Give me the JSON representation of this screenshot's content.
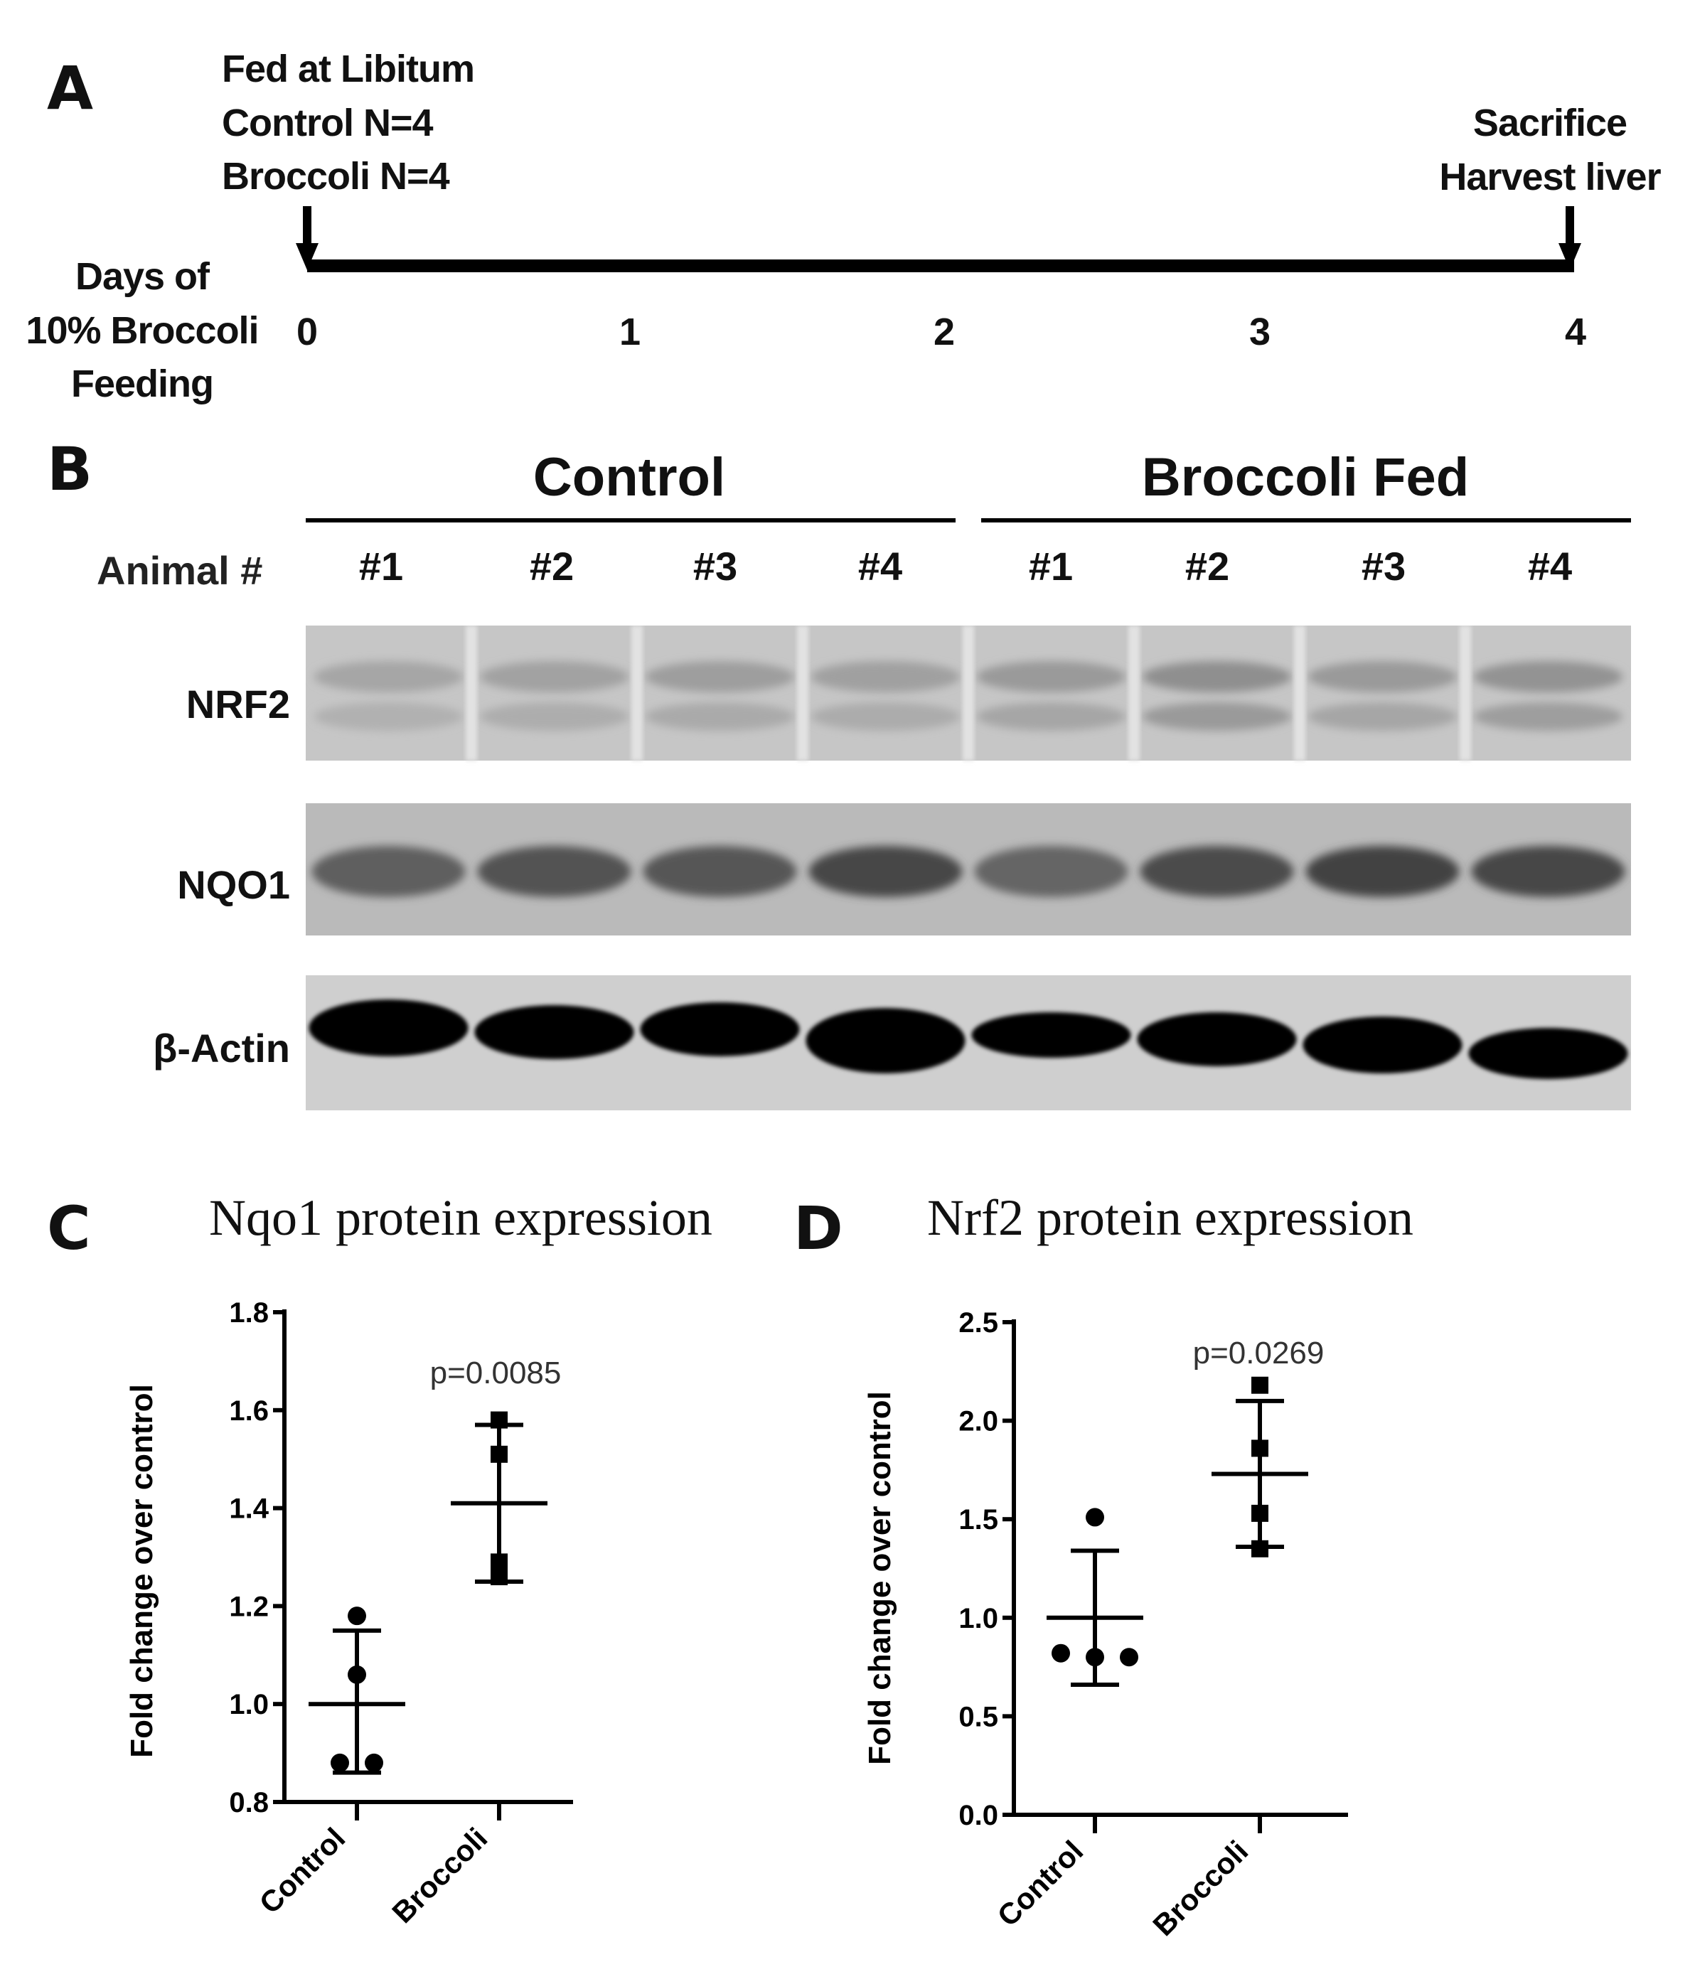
{
  "panelA": {
    "letter": "A",
    "start_lines": [
      "Fed at Libitum",
      "Control N=4",
      "Broccoli N=4"
    ],
    "end_lines": [
      "Sacrifice",
      "Harvest liver"
    ],
    "axis_label_lines": [
      "Days of",
      "10% Broccoli",
      "Feeding"
    ],
    "days": [
      "0",
      "1",
      "2",
      "3",
      "4"
    ]
  },
  "panelB": {
    "letter": "B",
    "group_control": "Control",
    "group_broccoli": "Broccoli Fed",
    "animal_label": "Animal #",
    "lanes": [
      "#1",
      "#2",
      "#3",
      "#4",
      "#1",
      "#2",
      "#3",
      "#4"
    ],
    "proteins": [
      "NRF2",
      "NQO1",
      "β-Actin"
    ],
    "band_intensity": {
      "NRF2": [
        0.12,
        0.14,
        0.16,
        0.15,
        0.18,
        0.24,
        0.18,
        0.22
      ],
      "NQO1": [
        0.55,
        0.62,
        0.6,
        0.68,
        0.52,
        0.66,
        0.7,
        0.68
      ],
      "β-Actin": [
        1,
        1,
        1,
        1,
        1,
        1,
        1,
        1
      ]
    }
  },
  "chart_data": [
    {
      "panel": "C",
      "type": "scatter",
      "title": "Nqo1 protein expression",
      "ylabel": "Fold change over control",
      "xlabel": "",
      "categories": [
        "Control",
        "Broccoli"
      ],
      "ylim": [
        0.8,
        1.8
      ],
      "yticks": [
        "0.8",
        "1.0",
        "1.2",
        "1.4",
        "1.6",
        "1.8"
      ],
      "series": [
        {
          "values": [
            1.18,
            1.06,
            0.88,
            0.88
          ],
          "marker": "circle",
          "mean": 1.0,
          "sd_low": 0.86,
          "sd_high": 1.15
        },
        {
          "values": [
            1.58,
            1.51,
            1.29,
            1.26
          ],
          "marker": "square",
          "mean": 1.41,
          "sd_low": 1.25,
          "sd_high": 1.57
        }
      ],
      "annotation": "p=0.0085"
    },
    {
      "panel": "D",
      "type": "scatter",
      "title": "Nrf2 protein expression",
      "ylabel": "Fold change over control",
      "xlabel": "",
      "categories": [
        "Control",
        "Broccoli"
      ],
      "ylim": [
        0.0,
        2.5
      ],
      "yticks": [
        "0.0",
        "0.5",
        "1.0",
        "1.5",
        "2.0",
        "2.5"
      ],
      "series": [
        {
          "values": [
            1.51,
            0.82,
            0.8,
            0.8
          ],
          "marker": "circle",
          "mean": 1.0,
          "sd_low": 0.66,
          "sd_high": 1.34
        },
        {
          "values": [
            2.18,
            1.86,
            1.53,
            1.35
          ],
          "marker": "square",
          "mean": 1.73,
          "sd_low": 1.36,
          "sd_high": 2.1
        }
      ],
      "annotation": "p=0.0269"
    }
  ]
}
